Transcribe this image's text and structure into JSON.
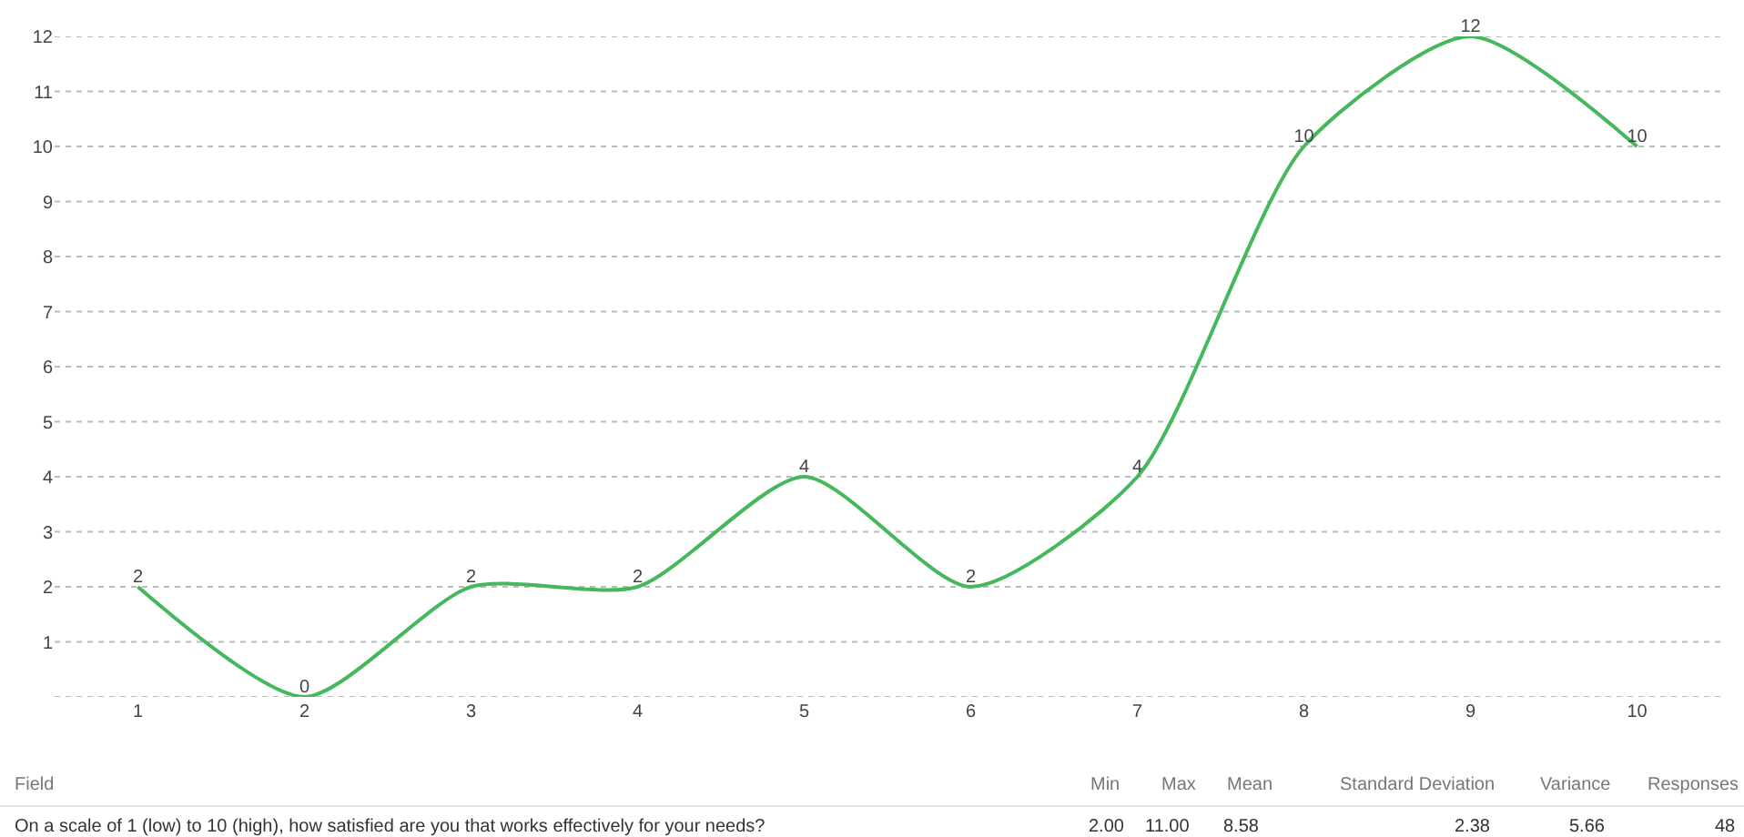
{
  "chart_data": {
    "type": "line",
    "categories": [
      "1",
      "2",
      "3",
      "4",
      "5",
      "6",
      "7",
      "8",
      "9",
      "10"
    ],
    "series": [
      {
        "color": "#45b85c",
        "values": [
          2,
          0,
          2,
          2,
          4,
          2,
          4,
          10,
          12,
          10
        ]
      }
    ],
    "ylim": [
      0,
      12
    ],
    "yticks": [
      {
        "value": 0,
        "label": null
      },
      1,
      2,
      3,
      4,
      5,
      6,
      7,
      8,
      9,
      10,
      11,
      12
    ],
    "grid": "y",
    "marker": "none",
    "line_style": "solid",
    "data_labels": true,
    "annotations": [
      "Field",
      "Min",
      "Max",
      "Mean",
      "Standard Deviation",
      "Variance",
      "Responses",
      "On a scale of 1 (low) to 10 (high), how satisfied are you that works effectively for your needs?",
      "2.00",
      "11.00",
      "8.58",
      "2.38",
      "5.66",
      "48"
    ]
  }
}
